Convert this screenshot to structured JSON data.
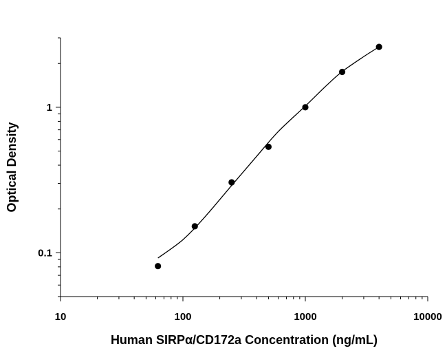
{
  "chart_data": {
    "type": "scatter",
    "xlabel": "Human SIRPα/CD172a Concentration (ng/mL)",
    "ylabel": "Optical Density",
    "xscale": "log",
    "yscale": "log",
    "xlim": [
      10,
      10000
    ],
    "ylim": [
      0.05,
      3
    ],
    "x_ticks": [
      10,
      100,
      1000,
      10000
    ],
    "x_tick_labels": [
      "10",
      "100",
      "1000",
      "10000"
    ],
    "y_ticks": [
      0.1,
      1
    ],
    "y_tick_labels": [
      "0.1",
      "1"
    ],
    "grid": false,
    "points": [
      {
        "x": 62.5,
        "y": 0.081
      },
      {
        "x": 125,
        "y": 0.152
      },
      {
        "x": 250,
        "y": 0.305
      },
      {
        "x": 500,
        "y": 0.535
      },
      {
        "x": 1000,
        "y": 1.0
      },
      {
        "x": 2000,
        "y": 1.75
      },
      {
        "x": 4000,
        "y": 2.6
      }
    ],
    "fit_curve": {
      "type": "4PL",
      "curve_points": [
        {
          "x": 62.5,
          "y": 0.092
        },
        {
          "x": 100,
          "y": 0.123
        },
        {
          "x": 150,
          "y": 0.175
        },
        {
          "x": 250,
          "y": 0.29
        },
        {
          "x": 400,
          "y": 0.46
        },
        {
          "x": 600,
          "y": 0.68
        },
        {
          "x": 1000,
          "y": 1.02
        },
        {
          "x": 1500,
          "y": 1.42
        },
        {
          "x": 2000,
          "y": 1.76
        },
        {
          "x": 3000,
          "y": 2.23
        },
        {
          "x": 4000,
          "y": 2.6
        }
      ]
    }
  }
}
